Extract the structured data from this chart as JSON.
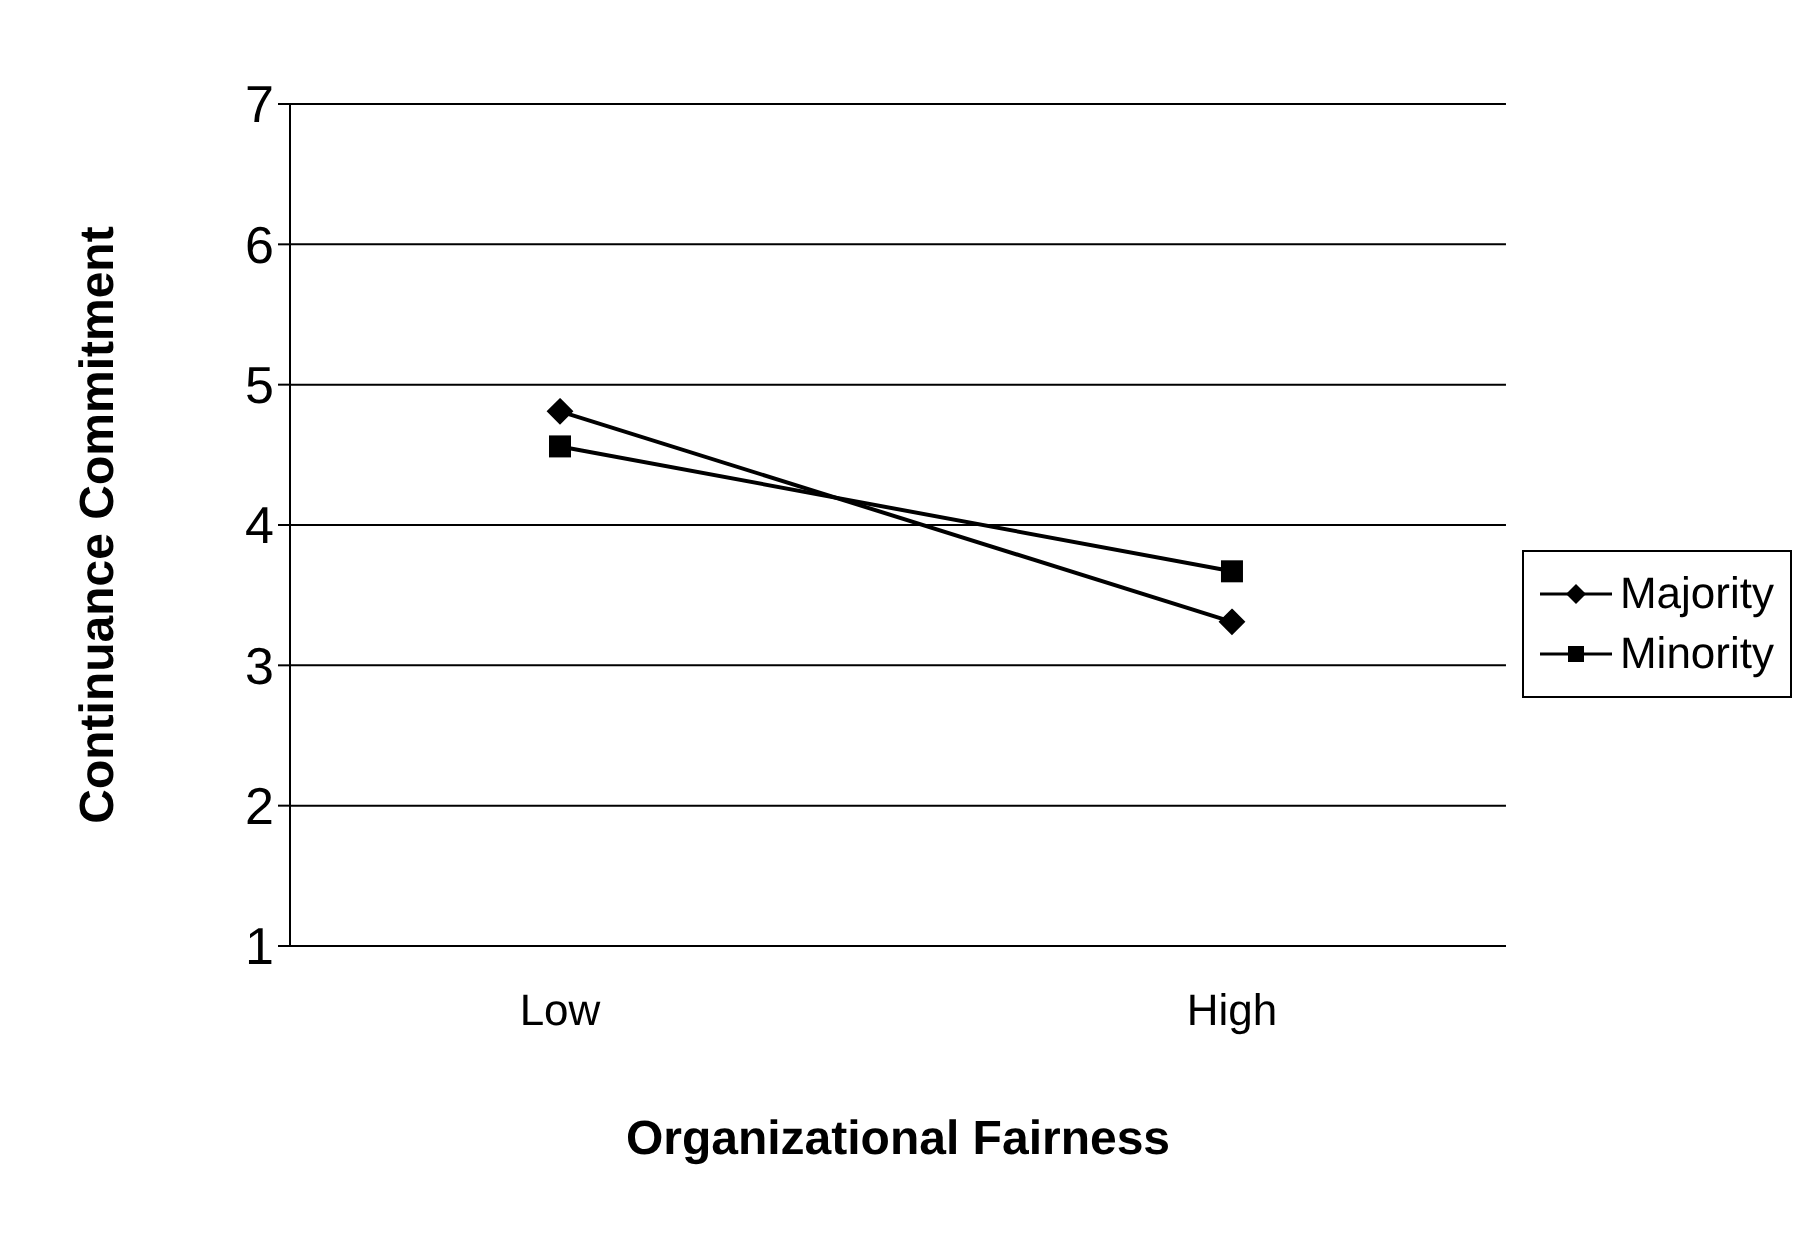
{
  "chart_data": {
    "type": "line",
    "xlabel": "Organizational Fairness",
    "ylabel": "Continuance Commitment",
    "categories": [
      "Low",
      "High"
    ],
    "series": [
      {
        "name": "Majority",
        "color": "#000000",
        "marker": "diamond",
        "values": [
          4.81,
          3.31
        ]
      },
      {
        "name": "Minority",
        "color": "#000000",
        "marker": "square",
        "values": [
          4.56,
          3.67
        ]
      }
    ],
    "ylim": [
      1,
      7
    ],
    "yticks": [
      1,
      2,
      3,
      4,
      5,
      6,
      7
    ],
    "grid": "y",
    "legend": "right",
    "line_style": "solid"
  }
}
